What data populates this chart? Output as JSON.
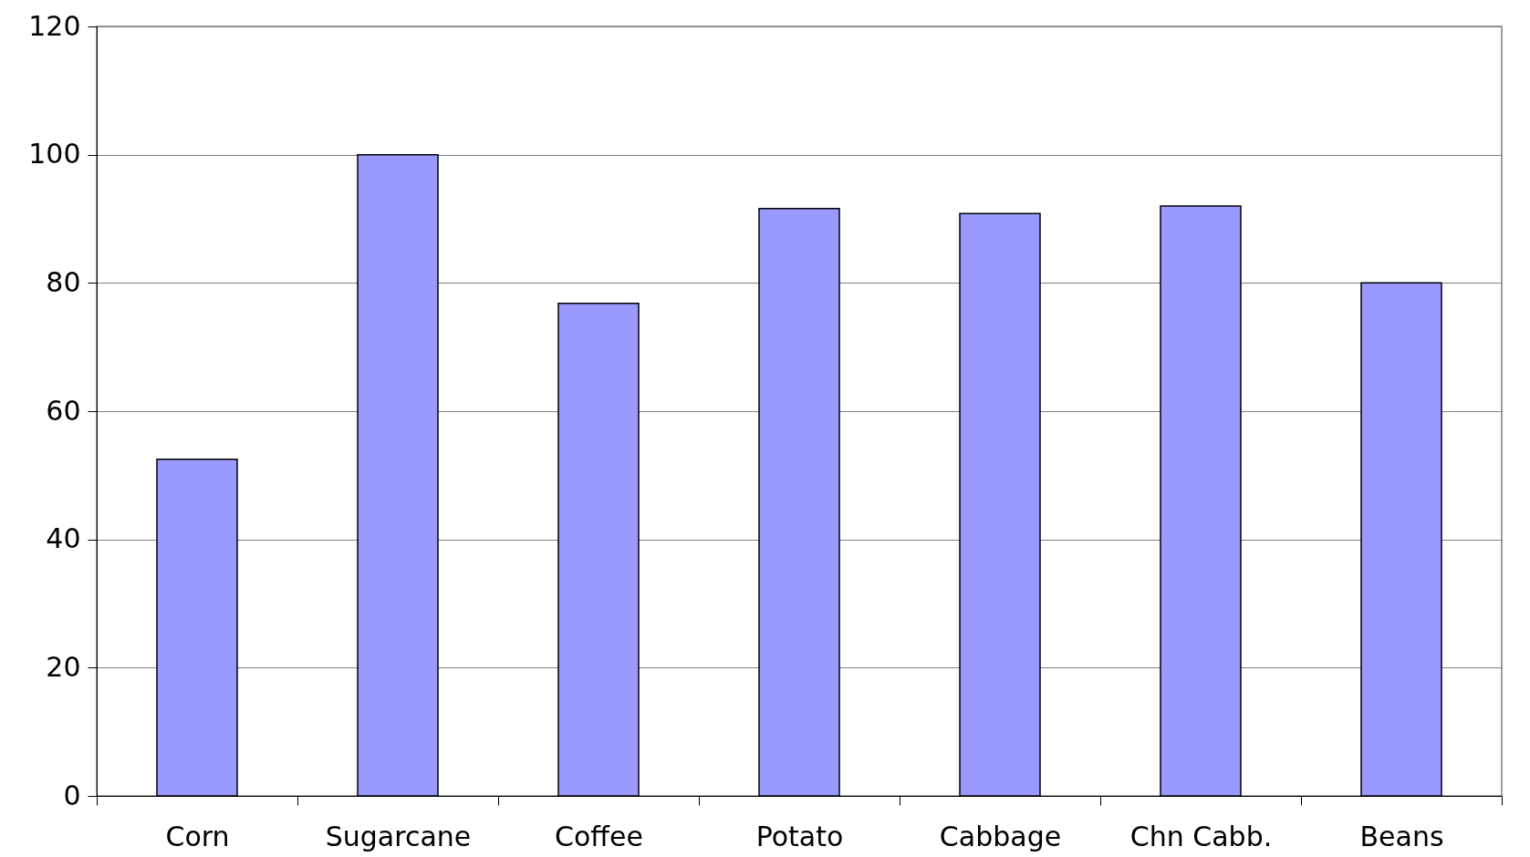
{
  "chart_data": {
    "type": "bar",
    "categories": [
      "Corn",
      "Sugarcane",
      "Coffee",
      "Potato",
      "Cabbage",
      "Chn Cabb.",
      "Beans"
    ],
    "values": [
      52.5,
      100,
      76.8,
      91.6,
      90.8,
      92,
      80
    ],
    "color": "#9999ff",
    "ylim": [
      0,
      120
    ],
    "yticks": [
      0,
      20,
      40,
      60,
      80,
      100,
      120
    ],
    "grid": "y"
  }
}
